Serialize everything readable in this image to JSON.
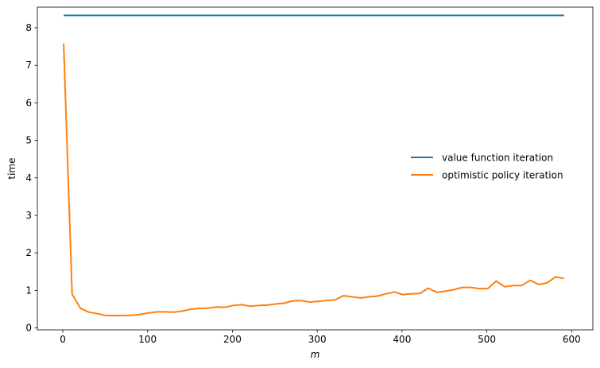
{
  "chart_data": {
    "type": "line",
    "xlabel": "m",
    "ylabel": "time",
    "xlim": [
      -30,
      625
    ],
    "ylim": [
      -0.05,
      8.55
    ],
    "xticks": [
      0,
      100,
      200,
      300,
      400,
      500,
      600
    ],
    "yticks": [
      0,
      1,
      2,
      3,
      4,
      5,
      6,
      7,
      8
    ],
    "grid": false,
    "legend_position": "center-right",
    "series": [
      {
        "name": "value function iteration",
        "color": "#1f77b4",
        "x": [
          1,
          591
        ],
        "y": [
          8.33,
          8.33
        ]
      },
      {
        "name": "optimistic policy iteration",
        "color": "#ff7f0e",
        "x": [
          1,
          11,
          21,
          31,
          41,
          51,
          61,
          71,
          81,
          91,
          101,
          111,
          121,
          131,
          141,
          151,
          161,
          171,
          181,
          191,
          201,
          211,
          221,
          231,
          241,
          251,
          261,
          271,
          281,
          291,
          301,
          311,
          321,
          331,
          341,
          351,
          361,
          371,
          381,
          391,
          401,
          411,
          421,
          431,
          441,
          451,
          461,
          471,
          481,
          491,
          501,
          511,
          521,
          531,
          541,
          551,
          561,
          571,
          581,
          591
        ],
        "y": [
          7.58,
          0.9,
          0.52,
          0.42,
          0.38,
          0.33,
          0.33,
          0.33,
          0.34,
          0.36,
          0.4,
          0.43,
          0.43,
          0.42,
          0.45,
          0.5,
          0.52,
          0.53,
          0.56,
          0.55,
          0.6,
          0.62,
          0.58,
          0.6,
          0.61,
          0.64,
          0.66,
          0.72,
          0.73,
          0.69,
          0.71,
          0.73,
          0.75,
          0.86,
          0.83,
          0.8,
          0.83,
          0.85,
          0.91,
          0.96,
          0.89,
          0.91,
          0.92,
          1.06,
          0.95,
          0.98,
          1.02,
          1.08,
          1.08,
          1.05,
          1.05,
          1.25,
          1.1,
          1.13,
          1.13,
          1.27,
          1.16,
          1.2,
          1.36,
          1.32
        ]
      }
    ]
  }
}
